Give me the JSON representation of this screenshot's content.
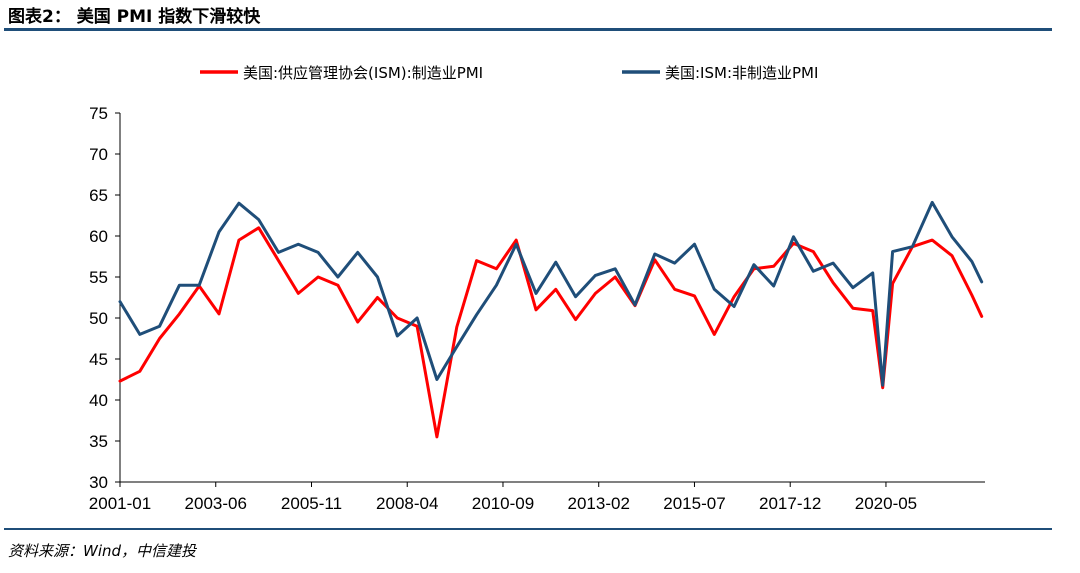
{
  "header": {
    "title": "图表2：  美国 PMI 指数下滑较快"
  },
  "footer": {
    "source": "资料来源：Wind，中信建投"
  },
  "chart_data": {
    "type": "line",
    "title": "图表2：  美国 PMI 指数下滑较快",
    "xlabel": "",
    "ylabel": "",
    "ylim": [
      30,
      75
    ],
    "yticks": [
      30,
      35,
      40,
      45,
      50,
      55,
      60,
      65,
      70,
      75
    ],
    "xticks": [
      "2001-01",
      "2003-06",
      "2005-11",
      "2008-04",
      "2010-09",
      "2013-02",
      "2015-07",
      "2017-12",
      "2020-05"
    ],
    "grid": false,
    "legend_position": "top",
    "x": [
      "2001-01",
      "2001-07",
      "2002-01",
      "2002-07",
      "2003-01",
      "2003-07",
      "2004-01",
      "2004-07",
      "2005-01",
      "2005-07",
      "2006-01",
      "2006-07",
      "2007-01",
      "2007-07",
      "2008-01",
      "2008-07",
      "2009-01",
      "2009-07",
      "2010-01",
      "2010-07",
      "2011-01",
      "2011-07",
      "2012-01",
      "2012-07",
      "2013-01",
      "2013-07",
      "2014-01",
      "2014-07",
      "2015-01",
      "2015-07",
      "2016-01",
      "2016-07",
      "2017-01",
      "2017-07",
      "2018-01",
      "2018-07",
      "2019-01",
      "2019-07",
      "2020-01",
      "2020-04",
      "2020-07",
      "2021-01",
      "2021-07",
      "2022-01",
      "2022-07",
      "2022-10"
    ],
    "series": [
      {
        "name": "美国:供应管理协会(ISM):制造业PMI",
        "color": "#ff0000",
        "values": [
          42.3,
          43.5,
          47.5,
          50.5,
          53.9,
          50.5,
          59.5,
          61.0,
          57.0,
          53.0,
          55.0,
          54.0,
          49.5,
          52.5,
          50.0,
          49.0,
          35.5,
          48.9,
          57.0,
          56.0,
          59.5,
          51.0,
          53.5,
          49.8,
          53.0,
          55.0,
          51.5,
          57.1,
          53.5,
          52.7,
          48.0,
          52.6,
          56.0,
          56.3,
          59.1,
          58.1,
          54.3,
          51.2,
          50.9,
          41.5,
          54.2,
          58.7,
          59.5,
          57.6,
          52.8,
          50.2
        ]
      },
      {
        "name": "美国:ISM:非制造业PMI",
        "color": "#1f4e79",
        "values": [
          52.0,
          48.0,
          49.0,
          54.0,
          54.0,
          60.5,
          64.0,
          62.0,
          58.0,
          59.0,
          58.0,
          55.0,
          58.0,
          55.0,
          47.8,
          50.0,
          42.5,
          46.5,
          50.4,
          54.0,
          59.0,
          53.0,
          56.8,
          52.6,
          55.2,
          56.0,
          51.6,
          57.8,
          56.7,
          59.0,
          53.5,
          51.4,
          56.5,
          53.9,
          59.9,
          55.7,
          56.7,
          53.7,
          55.5,
          41.8,
          58.1,
          58.7,
          64.1,
          59.9,
          56.9,
          54.4
        ]
      }
    ]
  }
}
